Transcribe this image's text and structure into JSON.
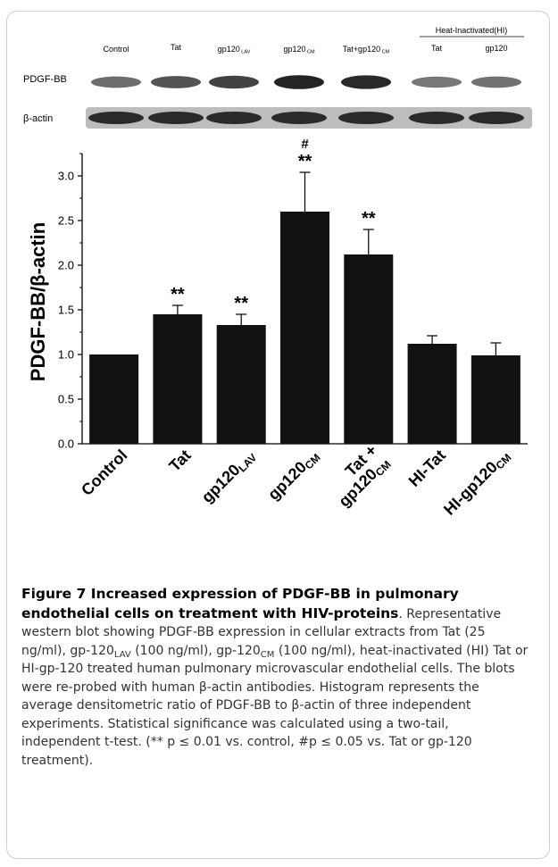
{
  "blot": {
    "lanes": [
      "Control",
      "Tat",
      "gp120",
      "gp120",
      "Tat+gp120",
      "Tat",
      "gp120"
    ],
    "lane_subs": [
      "",
      "",
      "LAV",
      "CM",
      "CM",
      "",
      ""
    ],
    "group_label": "Heat-Inactivated(HI)",
    "rows": [
      "PDGF-BB",
      "β-actin"
    ],
    "pdgf_intensity": [
      0.6,
      0.72,
      0.8,
      0.95,
      0.92,
      0.55,
      0.58
    ],
    "actin_intensity": [
      0.92,
      0.92,
      0.92,
      0.92,
      0.92,
      0.92,
      0.92
    ]
  },
  "chart_data": {
    "type": "bar",
    "categories": [
      "Control",
      "Tat",
      "gp120LAV",
      "gp120CM",
      "Tat + gp120CM",
      "HI-Tat",
      "HI-gp120CM"
    ],
    "category_labels": [
      {
        "main": "Control",
        "sub": ""
      },
      {
        "main": "Tat",
        "sub": ""
      },
      {
        "main": "gp120",
        "sub": "LAV"
      },
      {
        "main": "gp120",
        "sub": "CM"
      },
      {
        "main": "Tat +",
        "line2": "gp120",
        "sub": "CM"
      },
      {
        "main": "HI-Tat",
        "sub": ""
      },
      {
        "main": "HI-gp120",
        "sub": "CM"
      }
    ],
    "values": [
      1.0,
      1.45,
      1.33,
      2.6,
      2.12,
      1.12,
      0.99
    ],
    "errors": [
      0.0,
      0.1,
      0.12,
      0.44,
      0.28,
      0.09,
      0.14
    ],
    "annotations": [
      "",
      "**",
      "**",
      "**",
      "**",
      "",
      ""
    ],
    "annotation_hash": [
      "",
      "",
      "",
      "#",
      "",
      "",
      ""
    ],
    "ylabel": "PDGF-BB/β-actin",
    "ylim": [
      0,
      3.25
    ],
    "yticks": [
      "0.0",
      "0.5",
      "1.0",
      "1.5",
      "2.0",
      "2.5",
      "3.0"
    ],
    "bar_color": "#111111"
  },
  "caption": {
    "title": "Figure 7 Increased expression of PDGF-BB in pulmonary endothelial cells on treatment with HIV-proteins",
    "body_1": ". Representative western blot showing PDGF-BB expression in cellular extracts from Tat (25 ng/ml), gp-120",
    "sub_1": "LAV",
    "body_2": " (100 ng/ml), gp-120",
    "sub_2": "CM",
    "body_3": " (100 ng/ml), heat-inactivated (HI) Tat or HI-gp-120 treated human pulmonary microvascular endothelial cells. The blots were re-probed with human β-actin antibodies. Histogram represents the average densitometric ratio of PDGF-BB to β-actin of three independent experiments. Statistical significance was calculated using a two-tail, independent t-test. (** p ≤ 0.01 vs. control, #p ≤ 0.05 vs. Tat or gp-120 treatment)."
  }
}
